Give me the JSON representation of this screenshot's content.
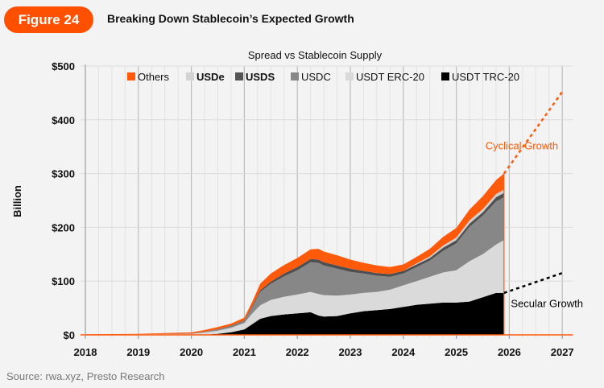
{
  "figure": {
    "badge": "Figure 24",
    "title": "Breaking Down Stablecoin’s Expected Growth",
    "source": "Source: rwa.xyz, Presto Research"
  },
  "chart_data": {
    "type": "area",
    "title": "Spread vs Stablecoin Supply",
    "xlabel": "",
    "ylabel": "Billion",
    "xlim": [
      2018,
      2027.2
    ],
    "ylim": [
      0,
      500
    ],
    "x_ticks": [
      "2018",
      "2019",
      "2020",
      "2021",
      "2022",
      "2023",
      "2024",
      "2025",
      "2026",
      "2027"
    ],
    "y_ticks": [
      "$0",
      "$100",
      "$200",
      "$300",
      "$400",
      "$500"
    ],
    "grid": true,
    "legend_position": "top",
    "legend": [
      {
        "name": "Others",
        "color": "#ff5a0a",
        "bold": false
      },
      {
        "name": "USDe",
        "color": "#d3d3d3",
        "bold": true
      },
      {
        "name": "USDS",
        "color": "#555555",
        "bold": true
      },
      {
        "name": "USDC",
        "color": "#888888",
        "bold": false
      },
      {
        "name": "USDT ERC-20",
        "color": "#dadada",
        "bold": false
      },
      {
        "name": "USDT TRC-20",
        "color": "#000000",
        "bold": false
      }
    ],
    "x": [
      2018.0,
      2019.0,
      2019.5,
      2020.0,
      2020.25,
      2020.5,
      2020.75,
      2021.0,
      2021.15,
      2021.3,
      2021.5,
      2021.75,
      2022.0,
      2022.25,
      2022.4,
      2022.5,
      2022.75,
      2023.0,
      2023.25,
      2023.5,
      2023.75,
      2024.0,
      2024.25,
      2024.5,
      2024.75,
      2025.0,
      2025.25,
      2025.5,
      2025.75,
      2025.9
    ],
    "series": [
      {
        "name": "USDT TRC-20",
        "values": [
          0,
          0,
          0,
          0,
          0.5,
          2,
          5,
          10,
          20,
          30,
          35,
          38,
          40,
          42,
          36,
          34,
          35,
          40,
          44,
          46,
          48,
          52,
          56,
          58,
          60,
          60,
          62,
          70,
          78,
          78
        ]
      },
      {
        "name": "USDT ERC-20",
        "values": [
          0.5,
          1,
          1.5,
          2,
          4,
          6,
          8,
          12,
          20,
          25,
          30,
          33,
          35,
          38,
          40,
          40,
          38,
          35,
          34,
          34,
          36,
          40,
          44,
          50,
          56,
          60,
          75,
          80,
          90,
          98
        ]
      },
      {
        "name": "USDC",
        "values": [
          0,
          0,
          0.2,
          0.5,
          1,
          2,
          3,
          4,
          12,
          25,
          30,
          38,
          45,
          55,
          58,
          55,
          50,
          42,
          36,
          30,
          24,
          22,
          26,
          30,
          40,
          50,
          64,
          72,
          80,
          80
        ]
      },
      {
        "name": "USDS",
        "values": [
          0,
          0,
          0.1,
          0.2,
          0.5,
          0.5,
          1,
          1,
          2,
          3,
          4,
          5,
          6,
          6,
          6,
          6,
          6,
          6,
          5,
          5,
          5,
          5,
          5,
          5,
          6,
          6,
          6,
          6,
          8,
          8
        ]
      },
      {
        "name": "USDe",
        "values": [
          0,
          0,
          0,
          0,
          0,
          0,
          0,
          0,
          0,
          0,
          0,
          0,
          0,
          0,
          0,
          0,
          0,
          0,
          0,
          0,
          0,
          0,
          2,
          3,
          4,
          5,
          6,
          6,
          6,
          6
        ]
      },
      {
        "name": "Others",
        "values": [
          0.5,
          1,
          1.5,
          2,
          3,
          4,
          4,
          5,
          8,
          12,
          15,
          16,
          17,
          18,
          20,
          20,
          19,
          17,
          15,
          14,
          13,
          12,
          12,
          14,
          16,
          18,
          20,
          24,
          26,
          30
        ]
      }
    ],
    "projections": [
      {
        "name": "Cyclical Growth",
        "color": "#ff5a0a",
        "from": [
          2025.9,
          300
        ],
        "to": [
          2027.0,
          452
        ]
      },
      {
        "name": "Secular Growth",
        "color": "#000000",
        "from": [
          2025.9,
          78
        ],
        "to": [
          2027.0,
          115
        ]
      }
    ],
    "annotations": [
      {
        "text": "Cyclical Growth",
        "x": 2025.55,
        "y": 345,
        "color": "#ff5a0a"
      },
      {
        "text": "Secular Growth",
        "x": 2026.03,
        "y": 52,
        "color": "#000000"
      }
    ]
  }
}
